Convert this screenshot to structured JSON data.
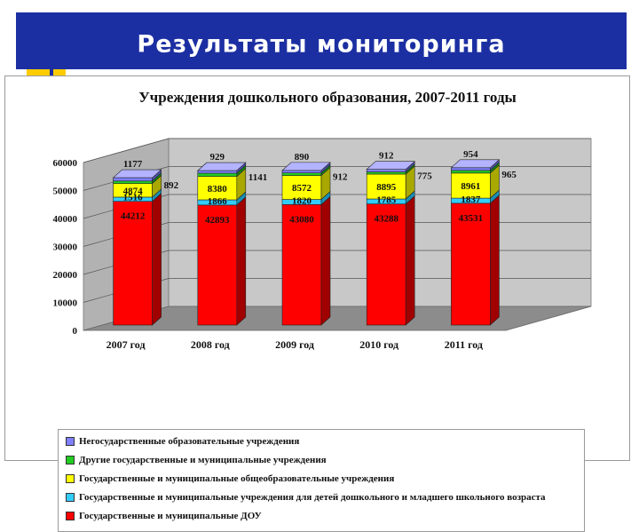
{
  "header": {
    "title": "Результаты мониторинга"
  },
  "chart_data": {
    "type": "bar",
    "stacked": true,
    "three_d": true,
    "title": "Учреждения дошкольного образования, 2007-2011 годы",
    "categories": [
      "2007 год",
      "2008 год",
      "2009 год",
      "2010 год",
      "2011 год"
    ],
    "ylim": [
      0,
      60000
    ],
    "yticks": [
      "0",
      "10000",
      "20000",
      "30000",
      "40000",
      "50000",
      "60000"
    ],
    "ytick_values": [
      0,
      10000,
      20000,
      30000,
      40000,
      50000,
      60000
    ],
    "grid": true,
    "legend_position": "bottom",
    "series": [
      {
        "name": "Государственные и муниципальные ДОУ",
        "color": "#ff0000",
        "side": "#a00000",
        "top": "#ff5a5a",
        "values": [
          44212,
          42893,
          43080,
          43288,
          43531
        ],
        "labels": [
          "44212",
          "42893",
          "43080",
          "43288",
          "43531"
        ]
      },
      {
        "name": "Государственные и муниципальные учреждения для детей дошкольного и младшего школьного возраста",
        "color": "#33ccff",
        "side": "#1a8fb5",
        "top": "#8fe3ff",
        "values": [
          1516,
          1866,
          1820,
          1785,
          1837
        ],
        "labels": [
          "1516",
          "1866",
          "1820",
          "1785",
          "1837"
        ]
      },
      {
        "name": "Государственные и муниципальные общеобразовательные учреждения",
        "color": "#ffff00",
        "side": "#a8a800",
        "top": "#ffff8a",
        "values": [
          4874,
          8380,
          8572,
          8895,
          8961
        ],
        "labels": [
          "4874",
          "8380",
          "8572",
          "8895",
          "8961"
        ]
      },
      {
        "name": "Другие государственные и муниципальные учреждения",
        "color": "#22cc22",
        "side": "#138a13",
        "top": "#7de87d",
        "values": [
          892,
          1141,
          912,
          775,
          965
        ],
        "labels": [
          "892",
          "1141",
          "912",
          "775",
          "965"
        ]
      },
      {
        "name": "Негосударственные образовательные учреждения",
        "color": "#8080ff",
        "side": "#5050b0",
        "top": "#b3b3ff",
        "values": [
          1177,
          929,
          890,
          912,
          954
        ],
        "labels": [
          "1177",
          "929",
          "890",
          "912",
          "954"
        ]
      }
    ]
  }
}
